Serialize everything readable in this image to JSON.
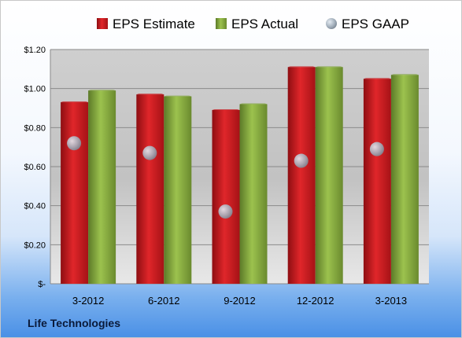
{
  "chart_data": {
    "type": "bar",
    "categories": [
      "3-2012",
      "6-2012",
      "9-2012",
      "12-2012",
      "3-2013"
    ],
    "series": [
      {
        "name": "EPS Estimate",
        "kind": "bar",
        "color": "#c8181e",
        "values": [
          0.93,
          0.97,
          0.89,
          1.11,
          1.05
        ]
      },
      {
        "name": "EPS Actual",
        "kind": "bar",
        "color": "#7da33a",
        "values": [
          0.99,
          0.96,
          0.92,
          1.11,
          1.07
        ]
      },
      {
        "name": "EPS GAAP",
        "kind": "marker",
        "color": "#9aa8b6",
        "values": [
          0.72,
          0.67,
          0.37,
          0.63,
          0.69
        ]
      }
    ],
    "ylim": [
      0,
      1.2
    ],
    "yticks": [
      {
        "value": 0,
        "label": "$-"
      },
      {
        "value": 0.2,
        "label": "$0.20"
      },
      {
        "value": 0.4,
        "label": "$0.40"
      },
      {
        "value": 0.6,
        "label": "$0.60"
      },
      {
        "value": 0.8,
        "label": "$0.80"
      },
      {
        "value": 1.0,
        "label": "$1.00"
      },
      {
        "value": 1.2,
        "label": "$1.20"
      }
    ],
    "grid": true,
    "legend_position": "top"
  },
  "footer": {
    "company": "Life Technologies"
  }
}
